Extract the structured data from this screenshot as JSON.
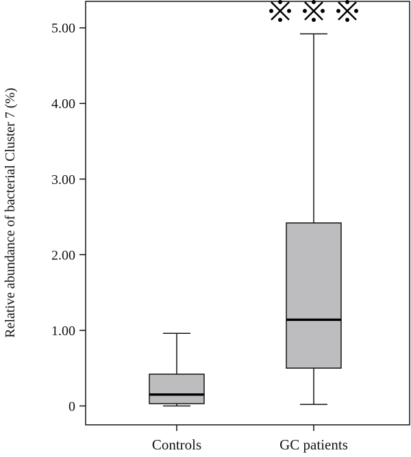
{
  "chart_data": {
    "type": "boxplot",
    "title": "",
    "xlabel": "",
    "ylabel": "Relative abundance of bacterial Cluster 7 (%)",
    "ylim": [
      -0.25,
      5.35
    ],
    "yticks": [
      0,
      1.0,
      2.0,
      3.0,
      4.0,
      5.0
    ],
    "ytick_labels": [
      "0",
      "1.00",
      "2.00",
      "3.00",
      "4.00",
      "5.00"
    ],
    "categories": [
      "Controls",
      "GC patients"
    ],
    "boxes": [
      {
        "category": "Controls",
        "whisker_low": 0.0,
        "q1": 0.03,
        "median": 0.15,
        "q3": 0.42,
        "whisker_high": 0.96
      },
      {
        "category": "GC patients",
        "whisker_low": 0.02,
        "q1": 0.5,
        "median": 1.14,
        "q3": 2.42,
        "whisker_high": 4.92
      }
    ],
    "significance": {
      "category": "GC patients",
      "symbol": "※※※",
      "count": 3
    },
    "grid": false,
    "box_fill": "#bdbdbf",
    "median_color": "#000000"
  }
}
